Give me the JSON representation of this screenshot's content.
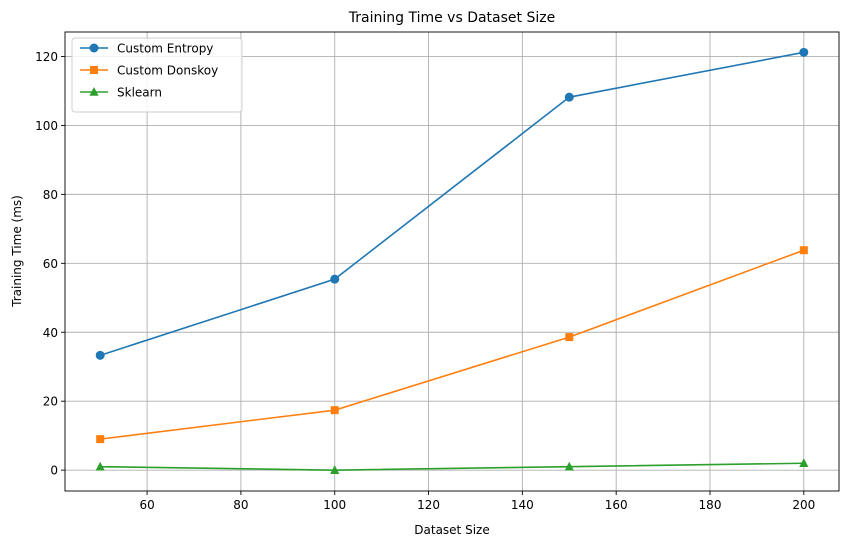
{
  "chart_data": {
    "type": "line",
    "title": "Training Time vs Dataset Size",
    "xlabel": "Dataset Size",
    "ylabel": "Training Time (ms)",
    "xlim": [
      42.5,
      207.5
    ],
    "ylim": [
      -6.05,
      127.1
    ],
    "xticks": [
      60,
      80,
      100,
      120,
      140,
      160,
      180,
      200
    ],
    "yticks": [
      0,
      20,
      40,
      60,
      80,
      100,
      120
    ],
    "grid": true,
    "legend_position": "top-left",
    "x": [
      50,
      100,
      150,
      200
    ],
    "series": [
      {
        "name": "Custom Entropy",
        "values": [
          33.3,
          55.4,
          108.2,
          121.2
        ],
        "color": "#1f77b4",
        "marker": "circle"
      },
      {
        "name": "Custom Donskoy",
        "values": [
          9.0,
          17.4,
          38.6,
          63.8
        ],
        "color": "#ff7f0e",
        "marker": "square"
      },
      {
        "name": "Sklearn",
        "values": [
          1.0,
          0.0,
          1.0,
          2.0
        ],
        "color": "#2ca02c",
        "marker": "triangle"
      }
    ]
  }
}
